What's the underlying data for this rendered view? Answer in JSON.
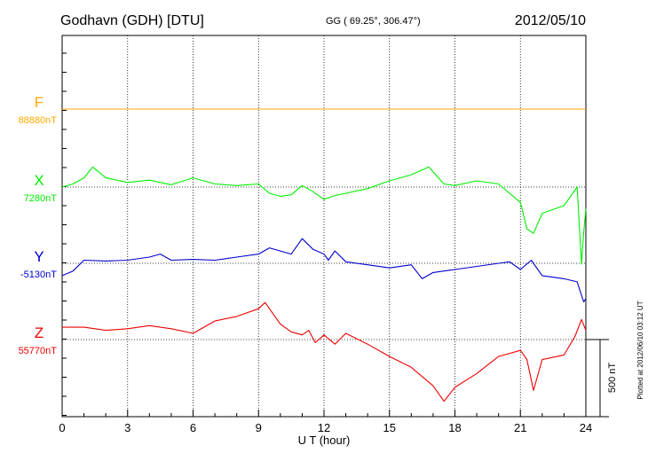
{
  "header": {
    "station": "Godhavn (GDH)  [DTU]",
    "coords": "GG ( 69.25°, 306.47°)",
    "date": "2012/05/10"
  },
  "footer": {
    "plotted": "Plotted at 2012/06/10 03:12 UT"
  },
  "colors": {
    "F": "#ffaa00",
    "X": "#00ee00",
    "Y": "#0000cc",
    "Z": "#ee0000",
    "grid": "#000000"
  },
  "chart_data": {
    "type": "line",
    "xlabel": "U T (hour)",
    "xlim": [
      0,
      24
    ],
    "xticks": [
      "0",
      "3",
      "6",
      "9",
      "12",
      "15",
      "18",
      "21",
      "24"
    ],
    "scale_bar_label": "500 nT",
    "series": [
      {
        "name": "F",
        "baseline_label": "88880nT",
        "x": [
          0,
          24
        ],
        "offset_nT": [
          0,
          0
        ]
      },
      {
        "name": "X",
        "baseline_label": "7280nT",
        "x": [
          0,
          0.5,
          1,
          1.4,
          2,
          3,
          4,
          5,
          6,
          7,
          8,
          9,
          9.5,
          10,
          10.5,
          11,
          11.5,
          12,
          12.5,
          13,
          14,
          15,
          16,
          16.8,
          17.5,
          18,
          19,
          20,
          21,
          21.3,
          21.6,
          22,
          23,
          23.6,
          23.8,
          23.9,
          24
        ],
        "offset_nT": [
          0,
          20,
          60,
          130,
          60,
          30,
          45,
          15,
          60,
          20,
          10,
          20,
          -40,
          -60,
          -50,
          10,
          -30,
          -80,
          -55,
          -40,
          -10,
          40,
          80,
          130,
          20,
          10,
          40,
          20,
          -100,
          -270,
          -300,
          -170,
          -120,
          0,
          -500,
          -300,
          -140
        ]
      },
      {
        "name": "Y",
        "baseline_label": "-5130nT",
        "x": [
          0,
          0.5,
          1,
          2,
          3,
          4,
          4.5,
          5,
          6,
          7,
          8,
          9,
          9.5,
          10,
          10.5,
          11,
          11.5,
          12,
          12.2,
          12.5,
          13,
          14,
          15,
          16,
          16.5,
          17,
          18,
          19,
          20,
          20.5,
          21,
          21.5,
          22,
          23,
          23.6,
          23.9,
          24
        ],
        "offset_nT": [
          -80,
          -50,
          20,
          15,
          20,
          40,
          60,
          20,
          25,
          20,
          40,
          60,
          100,
          80,
          60,
          160,
          90,
          60,
          20,
          80,
          10,
          -10,
          -30,
          -10,
          -100,
          -60,
          -40,
          -20,
          0,
          10,
          -40,
          20,
          -80,
          -100,
          -120,
          -250,
          -230
        ]
      },
      {
        "name": "Z",
        "baseline_label": "55770nT",
        "x": [
          0,
          1,
          2,
          3,
          4,
          5,
          6,
          7,
          8,
          9,
          9.3,
          10,
          10.5,
          11,
          11.3,
          11.6,
          12,
          12.5,
          13,
          14,
          15,
          16,
          17,
          17.5,
          18,
          19,
          20,
          21,
          21.3,
          21.6,
          22,
          23,
          23.5,
          23.8,
          24
        ],
        "offset_nT": [
          80,
          80,
          60,
          70,
          90,
          70,
          40,
          120,
          150,
          200,
          240,
          100,
          50,
          30,
          60,
          -20,
          30,
          -30,
          40,
          -30,
          -110,
          -180,
          -300,
          -400,
          -310,
          -220,
          -110,
          -70,
          -130,
          -330,
          -130,
          -100,
          20,
          130,
          60
        ]
      }
    ]
  }
}
